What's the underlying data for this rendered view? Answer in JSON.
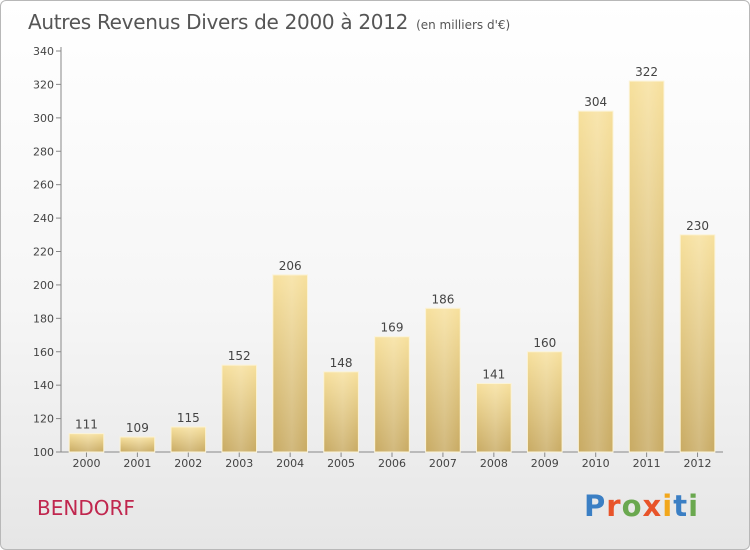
{
  "chart_data": {
    "type": "bar",
    "title": "Autres Revenus Divers de 2000 à 2012",
    "subtitle": "(en milliers d'€)",
    "categories": [
      "2000",
      "2001",
      "2002",
      "2003",
      "2004",
      "2005",
      "2006",
      "2007",
      "2008",
      "2009",
      "2010",
      "2011",
      "2012"
    ],
    "values": [
      111,
      109,
      115,
      152,
      206,
      148,
      169,
      186,
      141,
      160,
      304,
      322,
      230
    ],
    "ylim": [
      100,
      340
    ],
    "yticks": [
      100,
      120,
      140,
      160,
      180,
      200,
      220,
      240,
      260,
      280,
      300,
      320,
      340
    ],
    "grid": false,
    "bar_color": "#e8cd7f",
    "xlabel": "",
    "ylabel": ""
  },
  "footer": {
    "place_name": "BENDORF",
    "brand": {
      "letters": [
        "P",
        "r",
        "o",
        "x",
        "i",
        "t",
        "i"
      ],
      "colors": [
        "#3b7fc4",
        "#e8542a",
        "#6aa84f",
        "#e8542a",
        "#f2a71b",
        "#3b7fc4",
        "#6aa84f"
      ]
    }
  }
}
